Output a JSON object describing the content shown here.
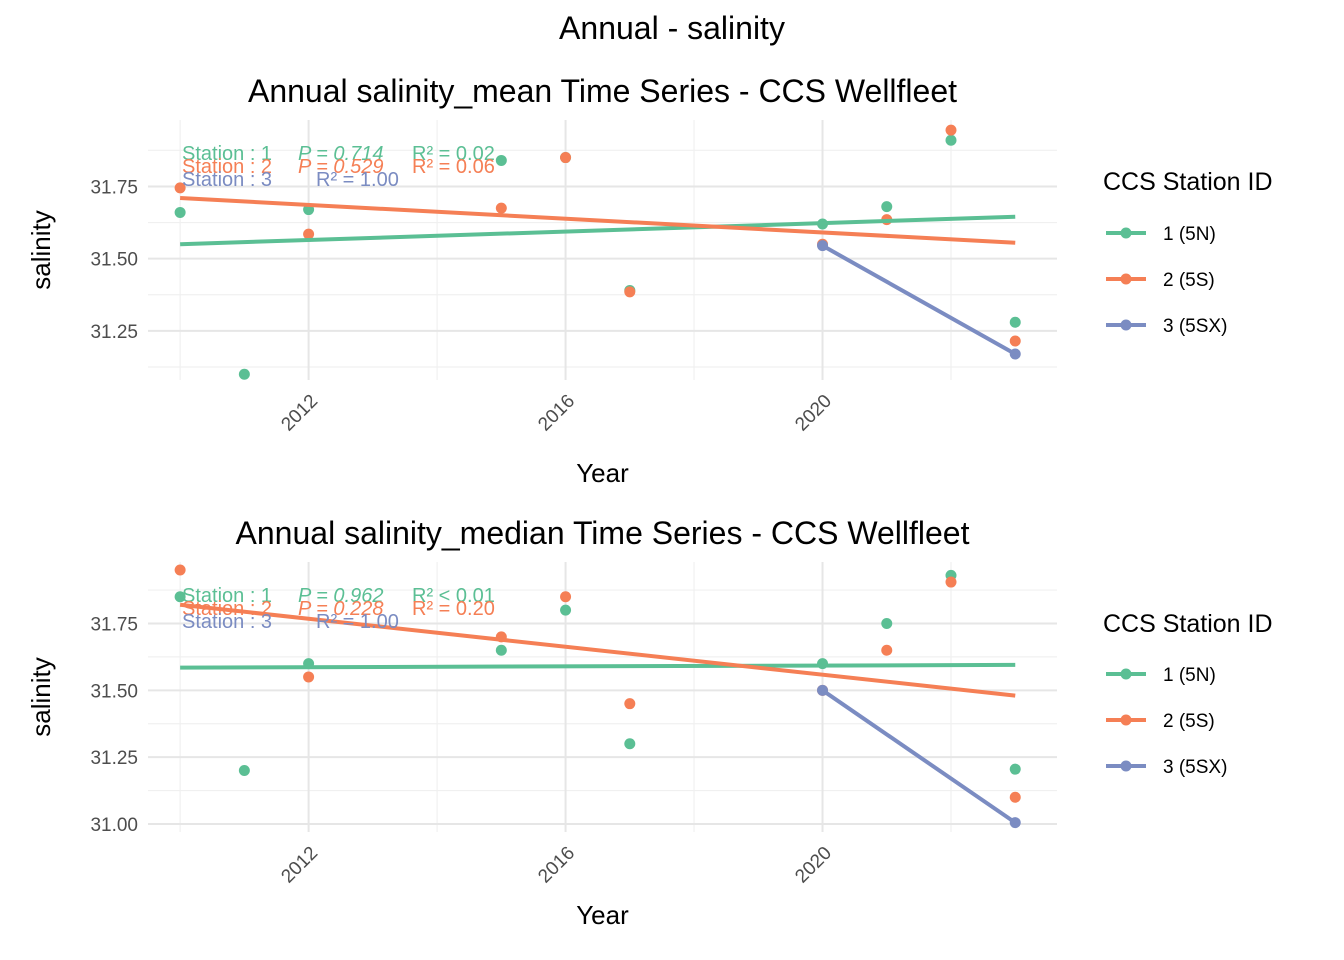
{
  "figure": {
    "title": "Annual - salinity"
  },
  "legend": {
    "title": "CCS Station ID",
    "entries": [
      {
        "label": "1 (5N)",
        "color": "#5bbf94"
      },
      {
        "label": "2 (5S)",
        "color": "#f57f55"
      },
      {
        "label": "3 (5SX)",
        "color": "#7b8cc2"
      }
    ]
  },
  "chart_data": [
    {
      "type": "scatter",
      "title": "Annual salinity_mean Time Series - CCS Wellfleet",
      "xlabel": "Year",
      "ylabel": "salinity",
      "xlim": [
        2009.5,
        2023.65
      ],
      "ylim": [
        31.08,
        31.98
      ],
      "x_ticks": [
        2012,
        2016,
        2020
      ],
      "y_ticks": [
        31.25,
        31.5,
        31.75
      ],
      "grid": true,
      "legend_position": "right",
      "series": [
        {
          "name": "1 (5N)",
          "color": "#5bbf94",
          "points": [
            [
              2010,
              31.66
            ],
            [
              2011,
              31.1
            ],
            [
              2012,
              31.67
            ],
            [
              2015,
              31.84
            ],
            [
              2016,
              31.85
            ],
            [
              2017,
              31.39
            ],
            [
              2020,
              31.62
            ],
            [
              2021,
              31.68
            ],
            [
              2022,
              31.91
            ],
            [
              2023,
              31.28
            ]
          ],
          "trend": [
            [
              2010,
              31.55
            ],
            [
              2023,
              31.645
            ]
          ],
          "annotation": {
            "station": "Station : 1",
            "p": "P = 0.714",
            "r2": "R² = 0.02"
          }
        },
        {
          "name": "2 (5S)",
          "color": "#f57f55",
          "points": [
            [
              2010,
              31.745
            ],
            [
              2012,
              31.585
            ],
            [
              2015,
              31.675
            ],
            [
              2016,
              31.85
            ],
            [
              2017,
              31.385
            ],
            [
              2020,
              31.55
            ],
            [
              2021,
              31.635
            ],
            [
              2022,
              31.945
            ],
            [
              2023,
              31.215
            ]
          ],
          "trend": [
            [
              2010,
              31.71
            ],
            [
              2023,
              31.555
            ]
          ],
          "annotation": {
            "station": "Station : 2",
            "p": "P = 0.529",
            "r2": "R² = 0.06"
          }
        },
        {
          "name": "3 (5SX)",
          "color": "#7b8cc2",
          "points": [
            [
              2020,
              31.545
            ],
            [
              2023,
              31.17
            ]
          ],
          "trend": [
            [
              2020,
              31.545
            ],
            [
              2023,
              31.17
            ]
          ],
          "annotation": {
            "station": "Station : 3",
            "p": "",
            "r2": "R² = 1.00"
          }
        }
      ]
    },
    {
      "type": "scatter",
      "title": "Annual salinity_median Time Series - CCS Wellfleet",
      "xlabel": "Year",
      "ylabel": "salinity",
      "xlim": [
        2009.5,
        2023.65
      ],
      "ylim": [
        30.97,
        31.98
      ],
      "x_ticks": [
        2012,
        2016,
        2020
      ],
      "y_ticks": [
        31.0,
        31.25,
        31.5,
        31.75
      ],
      "grid": true,
      "legend_position": "right",
      "series": [
        {
          "name": "1 (5N)",
          "color": "#5bbf94",
          "points": [
            [
              2010,
              31.85
            ],
            [
              2011,
              31.2
            ],
            [
              2012,
              31.6
            ],
            [
              2015,
              31.65
            ],
            [
              2016,
              31.8
            ],
            [
              2017,
              31.3
            ],
            [
              2020,
              31.6
            ],
            [
              2021,
              31.75
            ],
            [
              2022,
              31.93
            ],
            [
              2023,
              31.205
            ]
          ],
          "trend": [
            [
              2010,
              31.585
            ],
            [
              2023,
              31.595
            ]
          ],
          "annotation": {
            "station": "Station : 1",
            "p": "P = 0.962",
            "r2": "R² < 0.01"
          }
        },
        {
          "name": "2 (5S)",
          "color": "#f57f55",
          "points": [
            [
              2010,
              31.95
            ],
            [
              2012,
              31.55
            ],
            [
              2015,
              31.7
            ],
            [
              2016,
              31.85
            ],
            [
              2017,
              31.45
            ],
            [
              2020,
              31.5
            ],
            [
              2021,
              31.65
            ],
            [
              2022,
              31.905
            ],
            [
              2023,
              31.1
            ]
          ],
          "trend": [
            [
              2010,
              31.82
            ],
            [
              2023,
              31.48
            ]
          ],
          "annotation": {
            "station": "Station : 2",
            "p": "P = 0.228",
            "r2": "R² = 0.20"
          }
        },
        {
          "name": "3 (5SX)",
          "color": "#7b8cc2",
          "points": [
            [
              2020,
              31.5
            ],
            [
              2023,
              31.005
            ]
          ],
          "trend": [
            [
              2020,
              31.5
            ],
            [
              2023,
              31.005
            ]
          ],
          "annotation": {
            "station": "Station : 3",
            "p": "",
            "r2": "R² = 1.00"
          }
        }
      ]
    }
  ]
}
